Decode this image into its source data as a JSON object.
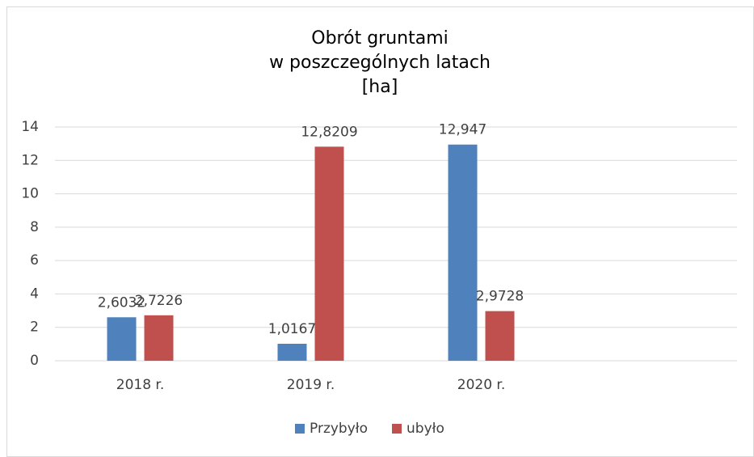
{
  "chart_data": {
    "type": "bar",
    "title": [
      "Obrót gruntami",
      "w poszczególnych latach",
      "[ha]"
    ],
    "categories": [
      "2018 r.",
      "2019 r.",
      "2020 r.",
      null
    ],
    "series": [
      {
        "name": "Przybyło",
        "color": "#4f81bd",
        "values": [
          2.6032,
          1.0167,
          12.947,
          null
        ],
        "value_labels": [
          "2,6032",
          "1,0167",
          "12,947",
          null
        ]
      },
      {
        "name": "ubyło",
        "color": "#c0504d",
        "values": [
          2.7226,
          12.8209,
          2.9728,
          null
        ],
        "value_labels": [
          "2,7226",
          "12,8209",
          "2,9728",
          null
        ]
      }
    ],
    "ylim": [
      0,
      14
    ],
    "yticks": [
      0,
      2,
      4,
      6,
      8,
      10,
      12,
      14
    ],
    "grid": true,
    "legend": "bottom"
  }
}
